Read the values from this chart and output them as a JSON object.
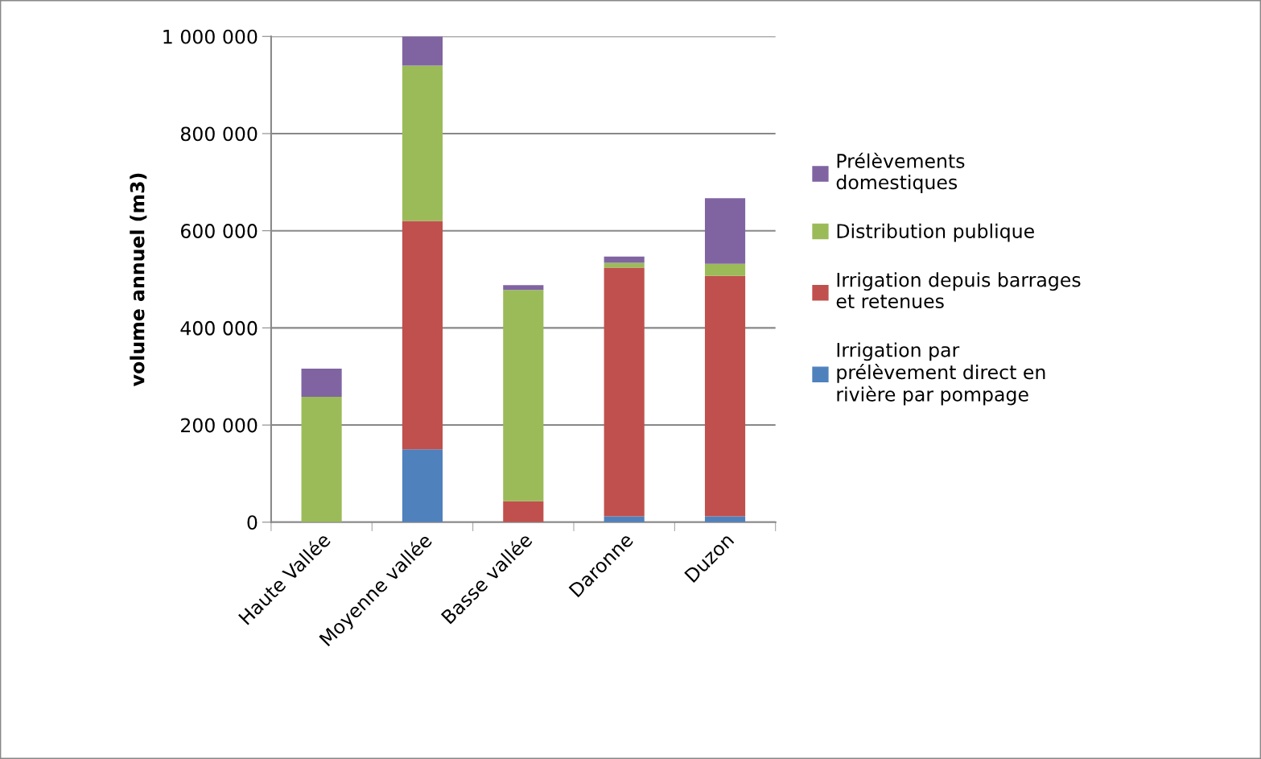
{
  "chart_data": {
    "type": "bar",
    "stacked": true,
    "ylabel": "volume annuel (m3)",
    "categories": [
      "Haute Vallée",
      "Moyenne vallée",
      "Basse vallée",
      "Daronne",
      "Duzon"
    ],
    "series": [
      {
        "name": "Irrigation par\nprélèvement direct en\nrivière par pompage",
        "color": "#4f81bd",
        "values": [
          0,
          150000,
          0,
          12000,
          12000
        ]
      },
      {
        "name": "Irrigation depuis barrages\net retenues",
        "color": "#c0504d",
        "values": [
          0,
          470000,
          43000,
          512000,
          495000
        ]
      },
      {
        "name": "Distribution publique",
        "color": "#9bbb59",
        "values": [
          258000,
          320000,
          435000,
          10000,
          25000
        ]
      },
      {
        "name": "Prélèvements\ndomestiques",
        "color": "#8064a2",
        "values": [
          58000,
          60000,
          10000,
          13000,
          135000
        ]
      }
    ],
    "ylim": [
      0,
      1000000
    ],
    "yticks": [
      0,
      {
        "value": 200000,
        "label": "200 000"
      },
      {
        "value": 400000,
        "label": "400 000"
      },
      {
        "value": 600000,
        "label": "600 000"
      },
      {
        "value": 800000,
        "label": "800 000"
      },
      {
        "value": 1000000,
        "label": "1 000 000"
      }
    ],
    "grid": "y",
    "legend": "right"
  }
}
